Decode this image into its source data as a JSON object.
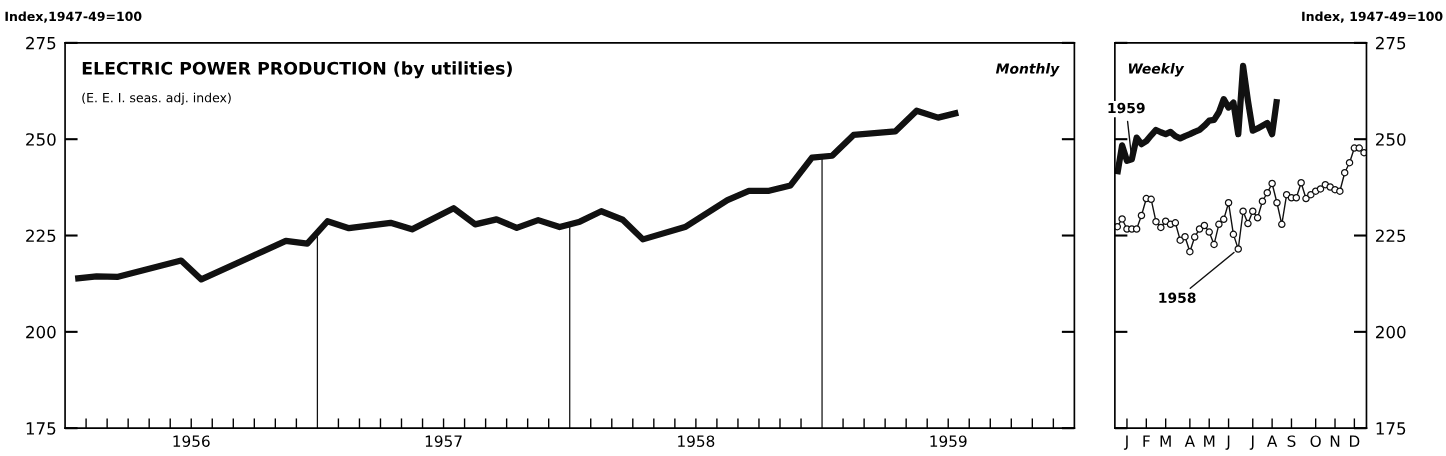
{
  "chart_data": [
    {
      "type": "line",
      "title": "ELECTRIC POWER PRODUCTION (by utilities)",
      "subtitle": "(E. E. I. seas. adj. index)",
      "ylabel": "Index,1947-49=100",
      "annotations": [
        "Monthly"
      ],
      "series": [
        {
          "color": "#111111",
          "x": [
            1956.04,
            1956.125,
            1956.21,
            1956.46,
            1956.54,
            1956.875,
            1956.96,
            1957.04,
            1957.125,
            1957.29,
            1957.375,
            1957.54,
            1957.625,
            1957.71,
            1957.79,
            1957.875,
            1957.96,
            1958.04,
            1958.125,
            1958.21,
            1958.29,
            1958.46,
            1958.625,
            1958.71,
            1958.79,
            1958.875,
            1958.96,
            1959.04,
            1959.125,
            1959.29,
            1959.375,
            1959.46,
            1959.54
          ],
          "values": [
            213.8,
            214.4,
            214.3,
            218.5,
            213.6,
            223.6,
            222.9,
            228.7,
            226.9,
            228.3,
            226.6,
            232.1,
            227.9,
            229.2,
            227.0,
            229.0,
            227.2,
            228.6,
            231.3,
            229.1,
            224.0,
            227.3,
            234.2,
            236.6,
            236.6,
            238.0,
            245.2,
            245.7,
            251.1,
            252.0,
            257.4,
            255.6,
            256.9
          ]
        }
      ],
      "xlim": [
        1956,
        1960
      ],
      "xticks": [
        {
          "value": 1956.0833,
          "label": null
        },
        {
          "value": 1956.1667,
          "label": null
        },
        {
          "value": 1956.25,
          "label": null
        },
        {
          "value": 1956.3333,
          "label": null
        },
        {
          "value": 1956.4167,
          "label": null
        },
        {
          "value": 1956.5,
          "label": "1956"
        },
        {
          "value": 1956.5833,
          "label": null
        },
        {
          "value": 1956.6667,
          "label": null
        },
        {
          "value": 1956.75,
          "label": null
        },
        {
          "value": 1956.8333,
          "label": null
        },
        {
          "value": 1956.9167,
          "label": null
        },
        {
          "value": 1957.0833,
          "label": null
        },
        {
          "value": 1957.1667,
          "label": null
        },
        {
          "value": 1957.25,
          "label": null
        },
        {
          "value": 1957.3333,
          "label": null
        },
        {
          "value": 1957.4167,
          "label": null
        },
        {
          "value": 1957.5,
          "label": "1957"
        },
        {
          "value": 1957.5833,
          "label": null
        },
        {
          "value": 1957.6667,
          "label": null
        },
        {
          "value": 1957.75,
          "label": null
        },
        {
          "value": 1957.8333,
          "label": null
        },
        {
          "value": 1957.9167,
          "label": null
        },
        {
          "value": 1958.0833,
          "label": null
        },
        {
          "value": 1958.1667,
          "label": null
        },
        {
          "value": 1958.25,
          "label": null
        },
        {
          "value": 1958.3333,
          "label": null
        },
        {
          "value": 1958.4167,
          "label": null
        },
        {
          "value": 1958.5,
          "label": "1958"
        },
        {
          "value": 1958.5833,
          "label": null
        },
        {
          "value": 1958.6667,
          "label": null
        },
        {
          "value": 1958.75,
          "label": null
        },
        {
          "value": 1958.8333,
          "label": null
        },
        {
          "value": 1958.9167,
          "label": null
        },
        {
          "value": 1959.0833,
          "label": null
        },
        {
          "value": 1959.1667,
          "label": null
        },
        {
          "value": 1959.25,
          "label": null
        },
        {
          "value": 1959.3333,
          "label": null
        },
        {
          "value": 1959.4167,
          "label": null
        },
        {
          "value": 1959.5,
          "label": "1959"
        },
        {
          "value": 1959.5833,
          "label": null
        },
        {
          "value": 1959.6667,
          "label": null
        },
        {
          "value": 1959.75,
          "label": null
        },
        {
          "value": 1959.8333,
          "label": null
        },
        {
          "value": 1959.9167,
          "label": null
        }
      ],
      "ylim": [
        175,
        275
      ],
      "yticks": [
        175,
        200,
        225,
        250,
        275
      ],
      "ref_lines": [
        {
          "axis": "x",
          "value": 1957,
          "color": "#111111"
        },
        {
          "axis": "x",
          "value": 1958,
          "color": "#111111"
        },
        {
          "axis": "x",
          "value": 1959,
          "color": "#111111"
        }
      ],
      "grid": false,
      "legend": false
    },
    {
      "type": "line",
      "ylabel": "Index, 1947-49=100",
      "annotations": [
        "Weekly"
      ],
      "categories": [
        null,
        null,
        "J",
        null,
        null,
        null,
        "F",
        null,
        null,
        null,
        "M",
        null,
        null,
        null,
        null,
        "A",
        null,
        null,
        null,
        "M",
        null,
        null,
        null,
        "J",
        null,
        null,
        null,
        null,
        "J",
        null,
        null,
        null,
        "A",
        null,
        null,
        null,
        "S",
        null,
        null,
        null,
        null,
        "O",
        null,
        null,
        null,
        "N",
        null,
        null,
        null,
        "D",
        null,
        null
      ],
      "series": [
        {
          "name": "1959",
          "color": "#111111",
          "marker": "none",
          "values": [
            240.9,
            248.4,
            244.4,
            244.8,
            250.4,
            248.7,
            249.5,
            251.0,
            252.4,
            251.8,
            251.3,
            251.9,
            250.8,
            250.2,
            250.8,
            251.3,
            251.9,
            252.4,
            253.5,
            254.8,
            255.0,
            257.0,
            260.4,
            258.2,
            259.5,
            251.3,
            269.0,
            260.0,
            252.2,
            252.8,
            253.5,
            254.2,
            251.3,
            260.4,
            null,
            null,
            null,
            null,
            null,
            null,
            null,
            null,
            null,
            null,
            null,
            null,
            null,
            null,
            null,
            null,
            null,
            null
          ]
        },
        {
          "name": "1958",
          "color": "#111111",
          "marker": "circle",
          "values": [
            227.3,
            229.3,
            226.7,
            226.7,
            226.7,
            230.2,
            234.6,
            234.4,
            228.6,
            227.1,
            228.7,
            227.9,
            228.3,
            223.8,
            224.7,
            220.8,
            224.6,
            226.7,
            227.6,
            225.9,
            222.7,
            227.9,
            229.2,
            233.5,
            225.3,
            221.5,
            231.3,
            228.1,
            231.3,
            229.6,
            233.9,
            236.1,
            238.5,
            233.5,
            227.9,
            235.6,
            234.8,
            234.8,
            238.7,
            234.6,
            235.6,
            236.5,
            237.1,
            238.2,
            237.6,
            236.9,
            236.5,
            241.3,
            243.9,
            247.7,
            247.7,
            246.5
          ]
        }
      ],
      "ylim": [
        175,
        275
      ],
      "yticks": [
        175,
        200,
        225,
        250,
        275
      ],
      "grid": false,
      "legend": false
    }
  ]
}
